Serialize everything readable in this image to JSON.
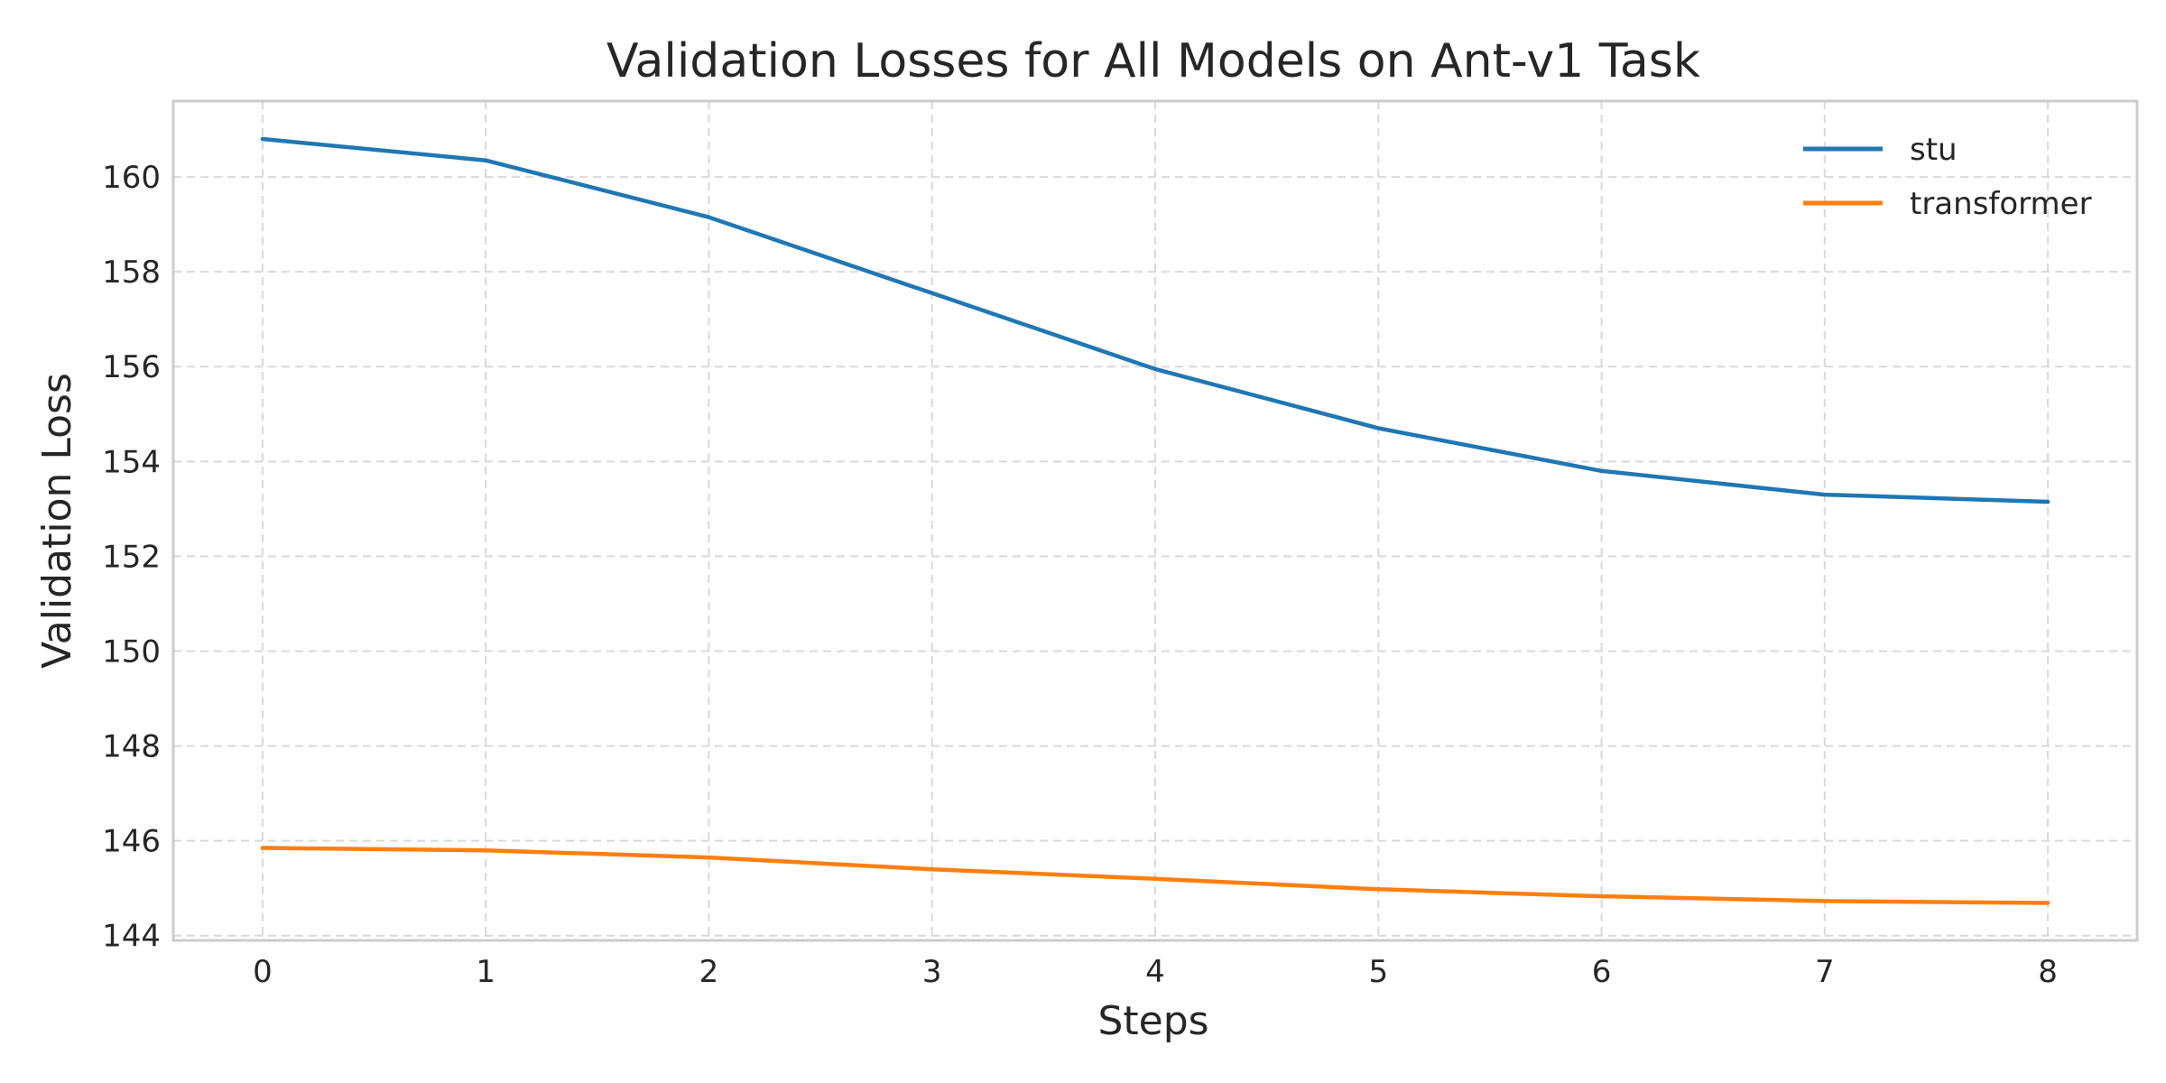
{
  "chart_data": {
    "type": "line",
    "title": "Validation Losses for All Models on Ant-v1 Task",
    "xlabel": "Steps",
    "ylabel": "Validation Loss",
    "x": [
      0,
      1,
      2,
      3,
      4,
      5,
      6,
      7,
      8
    ],
    "xlim": [
      -0.4,
      8.4
    ],
    "ylim": [
      143.9,
      161.6
    ],
    "xticks": [
      0,
      1,
      2,
      3,
      4,
      5,
      6,
      7,
      8
    ],
    "yticks": [
      144,
      146,
      148,
      150,
      152,
      154,
      156,
      158,
      160
    ],
    "grid": true,
    "legend_position": "top-right",
    "series": [
      {
        "name": "stu",
        "color": "#1f77b4",
        "values": [
          160.8,
          160.35,
          159.15,
          157.55,
          155.95,
          154.7,
          153.8,
          153.3,
          153.15
        ]
      },
      {
        "name": "transformer",
        "color": "#ff7f0e",
        "values": [
          145.85,
          145.8,
          145.65,
          145.4,
          145.2,
          144.98,
          144.83,
          144.73,
          144.69
        ]
      }
    ]
  }
}
